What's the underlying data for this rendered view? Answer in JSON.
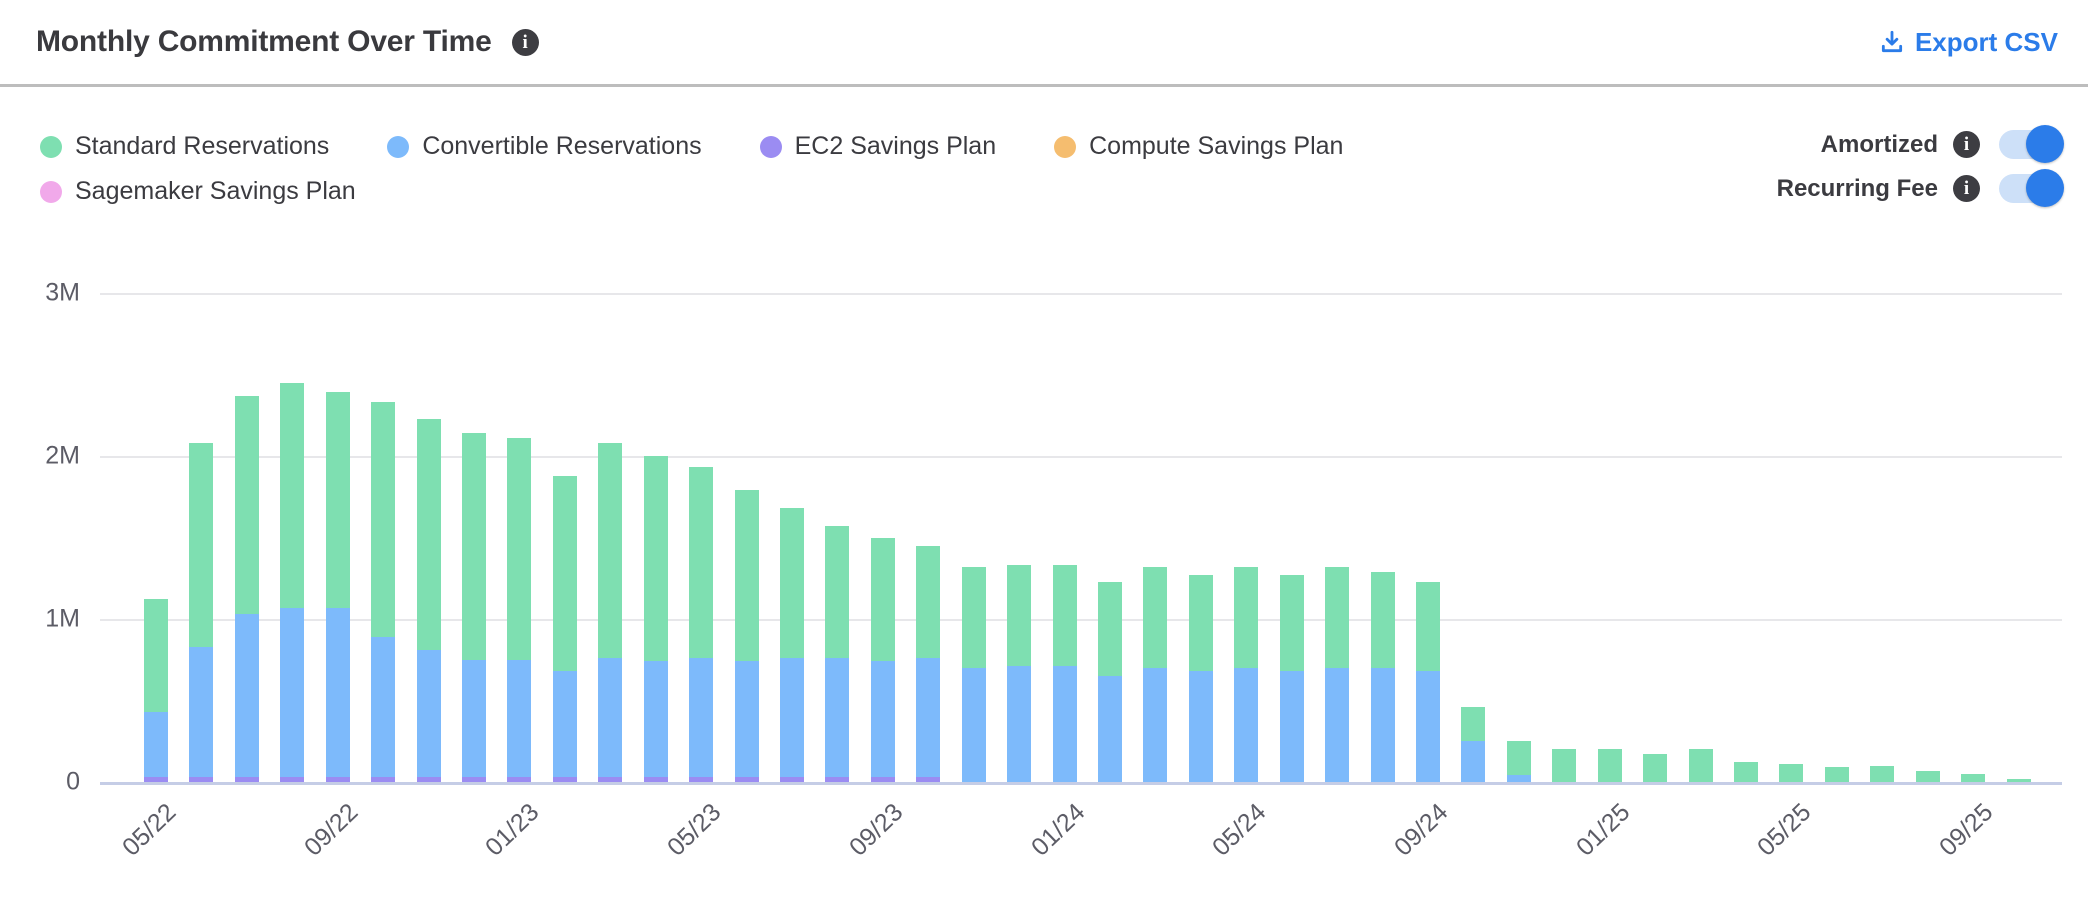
{
  "header": {
    "title": "Monthly Commitment Over Time",
    "export_label": "Export CSV"
  },
  "legend": [
    {
      "label": "Standard Reservations",
      "color": "#7edfb1"
    },
    {
      "label": "Convertible Reservations",
      "color": "#7dbafb"
    },
    {
      "label": "EC2 Savings Plan",
      "color": "#9b8cf2"
    },
    {
      "label": "Compute Savings Plan",
      "color": "#f5bd6f"
    },
    {
      "label": "Sagemaker Savings Plan",
      "color": "#f1a9ea"
    }
  ],
  "toggles": [
    {
      "label": "Amortized",
      "state": "on"
    },
    {
      "label": "Recurring Fee",
      "state": "on"
    }
  ],
  "colors": {
    "accent_blue": "#2b7ce9",
    "grid": "#e7e7ea",
    "axis_baseline": "#c5cde6",
    "axis_text": "#5c5c66"
  },
  "chart_data": {
    "type": "bar",
    "stacked": true,
    "title": "Monthly Commitment Over Time",
    "unit": "M",
    "ylim": [
      0,
      3.2
    ],
    "yticks": [
      "0",
      "1M",
      "2M",
      "3M"
    ],
    "x_tick_every": 4,
    "x": [
      "05/22",
      "06/22",
      "07/22",
      "08/22",
      "09/22",
      "10/22",
      "11/22",
      "12/22",
      "01/23",
      "02/23",
      "03/23",
      "04/23",
      "05/23",
      "06/23",
      "07/23",
      "08/23",
      "09/23",
      "10/23",
      "11/23",
      "12/23",
      "01/24",
      "02/24",
      "03/24",
      "04/24",
      "05/24",
      "06/24",
      "07/24",
      "08/24",
      "09/24",
      "10/24",
      "11/24",
      "12/24",
      "01/25",
      "02/25",
      "03/25",
      "04/25",
      "05/25",
      "06/25",
      "07/25",
      "08/25",
      "09/25",
      "10/25"
    ],
    "series": [
      {
        "name": "Standard Reservations",
        "values": [
          0.69,
          1.25,
          1.34,
          1.38,
          1.32,
          1.44,
          1.42,
          1.39,
          1.36,
          1.2,
          1.32,
          1.26,
          1.17,
          1.05,
          0.92,
          0.81,
          0.76,
          0.69,
          0.62,
          0.62,
          0.62,
          0.58,
          0.62,
          0.59,
          0.62,
          0.59,
          0.62,
          0.59,
          0.55,
          0.21,
          0.21,
          0.2,
          0.2,
          0.17,
          0.2,
          0.12,
          0.11,
          0.09,
          0.1,
          0.07,
          0.05,
          0.02
        ]
      },
      {
        "name": "Convertible Reservations",
        "values": [
          0.4,
          0.8,
          1.0,
          1.04,
          1.04,
          0.86,
          0.78,
          0.72,
          0.72,
          0.65,
          0.73,
          0.71,
          0.73,
          0.71,
          0.73,
          0.73,
          0.71,
          0.73,
          0.7,
          0.71,
          0.71,
          0.65,
          0.7,
          0.68,
          0.7,
          0.68,
          0.7,
          0.7,
          0.68,
          0.25,
          0.04,
          0,
          0,
          0,
          0,
          0,
          0,
          0,
          0,
          0,
          0,
          0
        ]
      },
      {
        "name": "EC2 Savings Plan",
        "values": [
          0.03,
          0.03,
          0.03,
          0.03,
          0.03,
          0.03,
          0.03,
          0.03,
          0.03,
          0.03,
          0.03,
          0.03,
          0.03,
          0.03,
          0.03,
          0.03,
          0.03,
          0.03,
          0,
          0,
          0,
          0,
          0,
          0,
          0,
          0,
          0,
          0,
          0,
          0,
          0,
          0,
          0,
          0,
          0,
          0,
          0,
          0,
          0,
          0,
          0,
          0
        ]
      },
      {
        "name": "Compute Savings Plan",
        "values": [
          0,
          0,
          0,
          0,
          0,
          0,
          0,
          0,
          0,
          0,
          0,
          0,
          0,
          0,
          0,
          0,
          0,
          0,
          0,
          0,
          0,
          0,
          0,
          0,
          0,
          0,
          0,
          0,
          0,
          0,
          0,
          0,
          0,
          0,
          0,
          0,
          0,
          0,
          0,
          0,
          0,
          0
        ]
      },
      {
        "name": "Sagemaker Savings Plan",
        "values": [
          0,
          0,
          0,
          0,
          0,
          0,
          0,
          0,
          0,
          0,
          0,
          0,
          0,
          0,
          0,
          0,
          0,
          0,
          0,
          0,
          0,
          0,
          0,
          0,
          0,
          0,
          0,
          0,
          0,
          0,
          0,
          0,
          0,
          0,
          0,
          0,
          0,
          0,
          0,
          0,
          0,
          0
        ]
      }
    ],
    "legend_position": "top-left",
    "grid": true
  }
}
